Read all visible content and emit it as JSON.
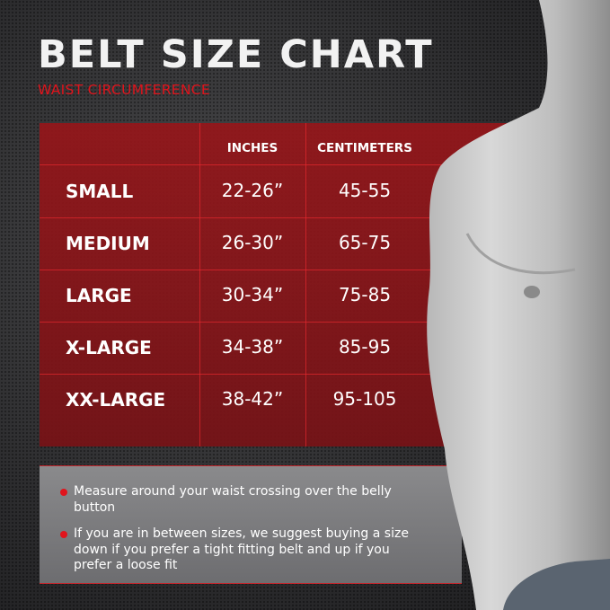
{
  "title": "BELT SIZE CHART",
  "subtitle": "WAIST CIRCUMFERENCE",
  "colors": {
    "accent_red": "#e0141c",
    "table_red": "#961a1e",
    "background": "#2e2e30",
    "notes_gray": "#7c7c7e"
  },
  "table": {
    "headers": {
      "size": "",
      "inches": "INCHES",
      "centimeters": "CENTIMETERS"
    },
    "rows": [
      {
        "size": "SMALL",
        "inches": "22-26”",
        "centimeters": "45-55"
      },
      {
        "size": "MEDIUM",
        "inches": "26-30”",
        "centimeters": "65-75"
      },
      {
        "size": "LARGE",
        "inches": "30-34”",
        "centimeters": "75-85"
      },
      {
        "size": "X-LARGE",
        "inches": "34-38”",
        "centimeters": "85-95"
      },
      {
        "size": "XX-LARGE",
        "inches": "38-42”",
        "centimeters": "95-105"
      }
    ]
  },
  "notes": [
    "Measure around your waist crossing over the belly button",
    "If you are in between sizes, we suggest buying a size down if you prefer a tight fitting belt and up if you prefer a loose fit"
  ]
}
